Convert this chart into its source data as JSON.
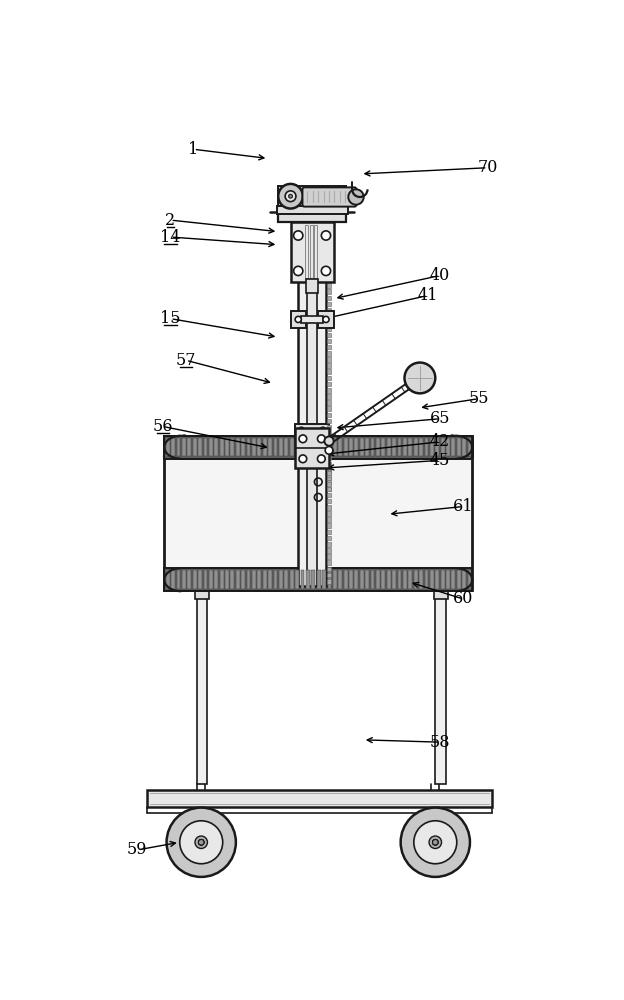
{
  "bg": "#ffffff",
  "lc": "#1a1a1a",
  "annotations": [
    [
      "1",
      148,
      962,
      245,
      950,
      false
    ],
    [
      "70",
      530,
      938,
      365,
      930,
      false
    ],
    [
      "2",
      118,
      870,
      258,
      855,
      true
    ],
    [
      "14",
      118,
      848,
      258,
      838,
      true
    ],
    [
      "40",
      468,
      798,
      330,
      768,
      false
    ],
    [
      "41",
      452,
      772,
      318,
      742,
      false
    ],
    [
      "15",
      118,
      742,
      258,
      718,
      true
    ],
    [
      "57",
      138,
      688,
      252,
      658,
      true
    ],
    [
      "55",
      518,
      638,
      440,
      626,
      false
    ],
    [
      "65",
      468,
      612,
      330,
      600,
      false
    ],
    [
      "56",
      108,
      602,
      248,
      574,
      true
    ],
    [
      "42",
      468,
      582,
      318,
      566,
      false
    ],
    [
      "45",
      468,
      558,
      318,
      548,
      false
    ],
    [
      "61",
      498,
      498,
      400,
      488,
      false
    ],
    [
      "60",
      498,
      378,
      428,
      400,
      false
    ],
    [
      "58",
      468,
      192,
      368,
      195,
      false
    ],
    [
      "59",
      75,
      52,
      130,
      62,
      false
    ]
  ]
}
